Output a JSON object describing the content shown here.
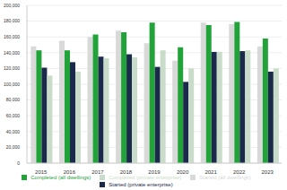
{
  "chart_data": {
    "type": "bar",
    "categories": [
      "2015",
      "2016",
      "2017",
      "2018",
      "2019",
      "2020",
      "2021",
      "2022",
      "2023"
    ],
    "series": [
      {
        "name": "Started (all dwellings)",
        "color": "#d9d9d9",
        "values": [
          148000,
          155000,
          160000,
          168000,
          152000,
          130000,
          178000,
          176000,
          148000
        ]
      },
      {
        "name": "Completed (all dwellings)",
        "color": "#22a33a",
        "values": [
          143000,
          143000,
          163000,
          166000,
          178000,
          147000,
          175000,
          179000,
          158000
        ]
      },
      {
        "name": "Started (private enterprise)",
        "color": "#1b2a4a",
        "values": [
          121000,
          128000,
          135000,
          138000,
          122000,
          103000,
          141000,
          142000,
          116000
        ]
      },
      {
        "name": "Completed (private enterprise)",
        "color": "#c9dcc9",
        "values": [
          111000,
          116000,
          133000,
          134000,
          143000,
          120000,
          141000,
          143000,
          120000
        ]
      }
    ],
    "ylim": [
      0,
      200000
    ],
    "yticks": [
      0,
      {
        "value": 20000,
        "label": "20,000"
      },
      {
        "value": 40000,
        "label": "40,000"
      },
      {
        "value": 60000,
        "label": "60,000"
      },
      {
        "value": 80000,
        "label": "80,000"
      },
      {
        "value": 100000,
        "label": "100,000"
      },
      {
        "value": 120000,
        "label": "120,000"
      },
      {
        "value": 140000,
        "label": "140,000"
      },
      {
        "value": 160000,
        "label": "160,000"
      },
      {
        "value": 180000,
        "label": "180,000"
      },
      {
        "value": 200000,
        "label": "200,000"
      }
    ],
    "grid": true,
    "legend": "bottom"
  }
}
